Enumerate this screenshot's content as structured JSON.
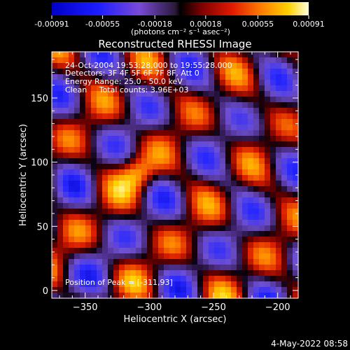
{
  "colorbar": {
    "ticks": [
      "-0.00091",
      "-0.00055",
      "-0.00018",
      "0.00018",
      "0.00055",
      "0.00091"
    ],
    "unit_label": "(photons cm⁻² s⁻¹ asec⁻²)",
    "range": [
      -0.00091,
      0.00091
    ]
  },
  "chart_data": {
    "type": "heatmap",
    "title": "Reconstructed RHESSI Image",
    "xlabel": "Heliocentric X (arcsec)",
    "ylabel": "Heliocentric Y (arcsec)",
    "xlim": [
      -376,
      -184
    ],
    "ylim": [
      -6,
      186
    ],
    "x_ticks": [
      -350,
      -300,
      -250,
      -200
    ],
    "y_ticks": [
      0,
      50,
      100,
      150
    ],
    "annotations": [
      "24-Oct-2004 19:53:28.000 to 19:55:28.000",
      "Detectors: 3F 4F 5F 6F 7F 8F, Att 0",
      "Energy Range: 25.0 - 50.0 keV",
      "Clean     Total counts: 3.96E+03"
    ],
    "peak_label": "Position of Peak = [-311,93]",
    "peak": [
      -311,
      93
    ]
  },
  "footer": {
    "timestamp": "4-May-2022 08:58"
  }
}
